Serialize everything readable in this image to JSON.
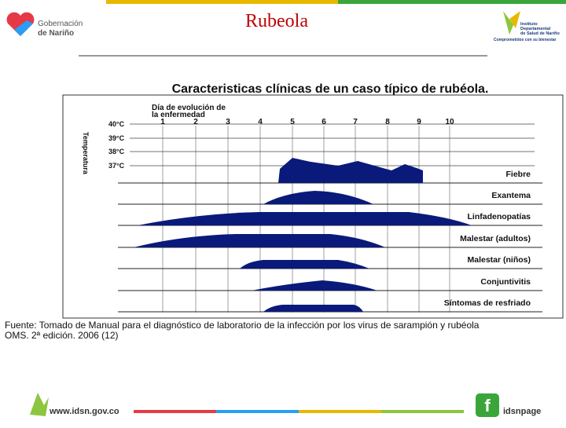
{
  "header": {
    "logo_left": [
      "Gobernación",
      "de Nariño"
    ],
    "title": "Rubeola",
    "logo_right": [
      "Instituto",
      "Departamental",
      "de Salud de Nariño"
    ],
    "logo_right_tagline": "Comprometidos con su bienestar"
  },
  "figure": {
    "title": "Caracteristicas clínicas de un caso típico de rubéola.",
    "day_axis_label": [
      "Día de evolución de",
      "la enfermedad"
    ],
    "days": [
      "1",
      "2",
      "3",
      "4",
      "5",
      "6",
      "7",
      "8",
      "9",
      "10"
    ],
    "temperature_label": "Temperatura",
    "temperatures": [
      "40°C",
      "39°C",
      "38°C",
      "37°C"
    ],
    "rows": [
      "Fiebre",
      "Exantema",
      "Linfadenopatías",
      "Malestar (adultos)",
      "Malestar (niños)",
      "Conjuntivitis",
      "Síntomas de resfriado"
    ]
  },
  "source": [
    "Fuente: Tomado de Manual para el diagnóstico de laboratorio de la infección por los virus de sarampión y rubéola",
    "OMS. 2ª edición. 2006 (12)"
  ],
  "footer": {
    "website": "www.idsn.gov.co",
    "social": "idsnpage"
  }
}
